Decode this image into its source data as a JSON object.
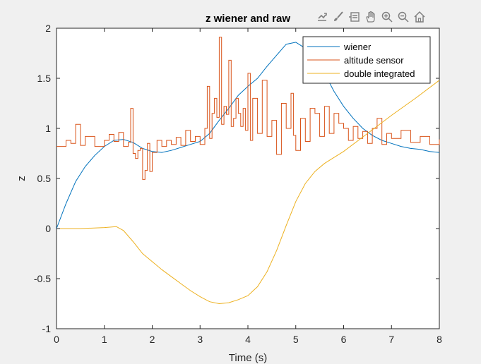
{
  "toolbar": {
    "icons": [
      "export-icon",
      "brush-icon",
      "data-tips-icon",
      "pan-icon",
      "zoom-in-icon",
      "zoom-out-icon",
      "home-icon"
    ]
  },
  "chart_data": {
    "type": "line",
    "title": "z wiener and raw",
    "xlabel": "Time (s)",
    "ylabel": "z",
    "xlim": [
      0,
      8
    ],
    "ylim": [
      -1,
      2
    ],
    "xticks": [
      0,
      1,
      2,
      3,
      4,
      5,
      6,
      7,
      8
    ],
    "yticks": [
      -1,
      -0.5,
      0,
      0.5,
      1,
      1.5,
      2
    ],
    "ytick_labels": [
      "-1",
      "-0.5",
      "0",
      "0.5",
      "1",
      "1.5",
      "2"
    ],
    "grid": false,
    "legend_position": "top-right",
    "series": [
      {
        "name": "wiener",
        "color": "#0072bd",
        "x": [
          0,
          0.2,
          0.4,
          0.6,
          0.8,
          1.0,
          1.2,
          1.4,
          1.6,
          1.8,
          2.0,
          2.2,
          2.4,
          2.6,
          2.8,
          3.0,
          3.2,
          3.4,
          3.6,
          3.8,
          4.0,
          4.2,
          4.4,
          4.6,
          4.8,
          5.0,
          5.2,
          5.4,
          5.6,
          5.8,
          6.0,
          6.2,
          6.4,
          6.6,
          6.8,
          7.0,
          7.2,
          7.4,
          7.6,
          7.8,
          8.0
        ],
        "y": [
          0.0,
          0.25,
          0.47,
          0.62,
          0.73,
          0.82,
          0.88,
          0.89,
          0.86,
          0.8,
          0.77,
          0.76,
          0.78,
          0.81,
          0.84,
          0.87,
          0.95,
          1.08,
          1.2,
          1.33,
          1.42,
          1.5,
          1.62,
          1.73,
          1.84,
          1.86,
          1.8,
          1.72,
          1.55,
          1.37,
          1.22,
          1.1,
          1.0,
          0.93,
          0.88,
          0.85,
          0.82,
          0.8,
          0.79,
          0.77,
          0.76
        ]
      },
      {
        "name": "altitude sensor",
        "color": "#d95319",
        "x": [
          0,
          0.2,
          0.3,
          0.4,
          0.5,
          0.6,
          0.8,
          1.0,
          1.1,
          1.2,
          1.3,
          1.4,
          1.5,
          1.55,
          1.6,
          1.65,
          1.7,
          1.75,
          1.8,
          1.85,
          1.9,
          1.95,
          2.0,
          2.1,
          2.2,
          2.3,
          2.4,
          2.5,
          2.6,
          2.7,
          2.8,
          2.9,
          3.0,
          3.1,
          3.15,
          3.2,
          3.25,
          3.3,
          3.35,
          3.4,
          3.45,
          3.5,
          3.55,
          3.6,
          3.65,
          3.7,
          3.75,
          3.8,
          3.85,
          3.9,
          3.95,
          4.0,
          4.05,
          4.1,
          4.2,
          4.3,
          4.4,
          4.5,
          4.6,
          4.7,
          4.8,
          4.9,
          4.95,
          5.0,
          5.1,
          5.2,
          5.3,
          5.4,
          5.5,
          5.6,
          5.7,
          5.8,
          5.9,
          6.0,
          6.1,
          6.2,
          6.3,
          6.4,
          6.5,
          6.6,
          6.7,
          6.8,
          6.9,
          7.0,
          7.2,
          7.4,
          7.6,
          7.8,
          8.0
        ],
        "y": [
          0.82,
          0.88,
          0.85,
          1.04,
          0.83,
          0.92,
          0.82,
          0.88,
          0.94,
          0.87,
          0.96,
          0.82,
          0.86,
          1.2,
          0.75,
          0.7,
          0.78,
          0.8,
          0.49,
          0.58,
          0.85,
          0.57,
          0.76,
          0.88,
          0.82,
          0.88,
          0.84,
          0.91,
          0.83,
          0.98,
          0.87,
          0.92,
          0.84,
          1.0,
          1.42,
          0.9,
          1.15,
          1.3,
          1.11,
          1.91,
          1.04,
          1.22,
          1.14,
          1.68,
          1.02,
          1.1,
          1.3,
          1.15,
          1.02,
          1.2,
          0.98,
          1.55,
          0.88,
          1.3,
          0.95,
          1.48,
          0.92,
          1.08,
          0.74,
          1.25,
          1.0,
          1.35,
          0.93,
          0.78,
          1.1,
          0.87,
          1.2,
          1.15,
          0.92,
          1.22,
          0.95,
          1.15,
          1.05,
          1.0,
          0.88,
          1.02,
          0.9,
          0.97,
          0.85,
          1.0,
          1.1,
          0.84,
          0.95,
          0.9,
          0.98,
          0.86,
          0.92,
          0.84,
          0.89
        ]
      },
      {
        "name": "double integrated",
        "color": "#edb120",
        "x": [
          0,
          0.5,
          1.0,
          1.25,
          1.4,
          1.6,
          1.8,
          2.0,
          2.2,
          2.4,
          2.6,
          2.8,
          3.0,
          3.2,
          3.4,
          3.6,
          3.8,
          4.0,
          4.2,
          4.4,
          4.6,
          4.8,
          5.0,
          5.2,
          5.4,
          5.6,
          5.8,
          6.0,
          6.5,
          7.0,
          7.5,
          8.0
        ],
        "y": [
          0.0,
          0.0,
          0.01,
          0.02,
          -0.02,
          -0.13,
          -0.25,
          -0.33,
          -0.41,
          -0.48,
          -0.55,
          -0.62,
          -0.68,
          -0.73,
          -0.75,
          -0.74,
          -0.71,
          -0.67,
          -0.58,
          -0.43,
          -0.22,
          0.03,
          0.27,
          0.45,
          0.57,
          0.65,
          0.71,
          0.77,
          0.95,
          1.13,
          1.3,
          1.48
        ]
      }
    ]
  }
}
